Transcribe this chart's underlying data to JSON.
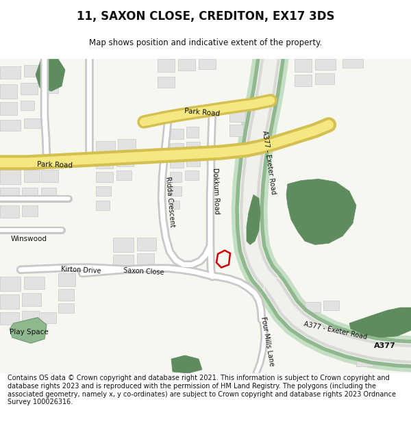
{
  "title": "11, SAXON CLOSE, CREDITON, EX17 3DS",
  "subtitle": "Map shows position and indicative extent of the property.",
  "footer": "Contains OS data © Crown copyright and database right 2021. This information is subject to Crown copyright and database rights 2023 and is reproduced with the permission of HM Land Registry. The polygons (including the associated geometry, namely x, y co-ordinates) are subject to Crown copyright and database rights 2023 Ordnance Survey 100026316.",
  "bg_color": "#f7f7f2",
  "building_color": "#e2e2e2",
  "building_outline": "#c8c8c8",
  "green_dark": "#5e8c5e",
  "green_light": "#c5dfc5",
  "green_med": "#8fb88f",
  "yellow_fill": "#f5e882",
  "yellow_outline": "#d4c050",
  "road_fill": "#ffffff",
  "road_outline": "#c8c8c8",
  "highlight_color": "#cc0000",
  "map_bg": "#f7f7f2"
}
